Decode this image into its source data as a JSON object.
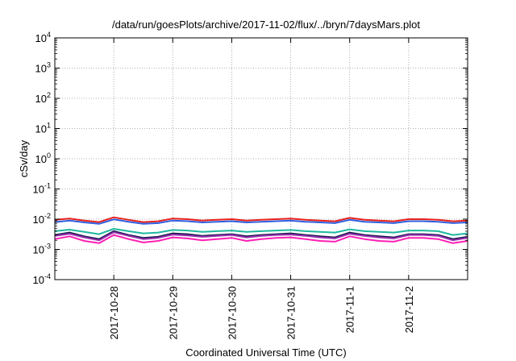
{
  "chart_data": {
    "type": "line",
    "title": "/data/run/goesPlots/archive/2017-11-02/flux/../bryn/7daysMars.plot",
    "xlabel": "Coordinated Universal Time (UTC)",
    "ylabel": "cSv/day",
    "yscale": "log",
    "ylim": [
      0.0001,
      10000
    ],
    "yticks": [
      {
        "value": 0.0001,
        "base": "10",
        "exp": "-4"
      },
      {
        "value": 0.001,
        "base": "10",
        "exp": "-3"
      },
      {
        "value": 0.01,
        "base": "10",
        "exp": "-2"
      },
      {
        "value": 0.1,
        "base": "10",
        "exp": "-1"
      },
      {
        "value": 1,
        "base": "10",
        "exp": "0"
      },
      {
        "value": 10,
        "base": "10",
        "exp": "1"
      },
      {
        "value": 100,
        "base": "10",
        "exp": "2"
      },
      {
        "value": 1000,
        "base": "10",
        "exp": "3"
      },
      {
        "value": 10000,
        "base": "10",
        "exp": "4"
      }
    ],
    "xlim": [
      "2017-10-27T00:00",
      "2017-11-03T00:00"
    ],
    "xticks": [
      {
        "value": "2017-10-28T00:00",
        "label": "2017-10-28"
      },
      {
        "value": "2017-10-29T00:00",
        "label": "2017-10-29"
      },
      {
        "value": "2017-10-30T00:00",
        "label": "2017-10-30"
      },
      {
        "value": "2017-10-31T00:00",
        "label": "2017-10-31"
      },
      {
        "value": "2017-11-01T00:00",
        "label": "2017-11-1"
      },
      {
        "value": "2017-11-02T00:00",
        "label": "2017-11-2"
      }
    ],
    "grid": true,
    "legend": "none",
    "x": [
      "2017-10-27T00:00",
      "2017-10-27T06:00",
      "2017-10-27T12:00",
      "2017-10-27T18:00",
      "2017-10-28T00:00",
      "2017-10-28T06:00",
      "2017-10-28T12:00",
      "2017-10-28T18:00",
      "2017-10-29T00:00",
      "2017-10-29T06:00",
      "2017-10-29T12:00",
      "2017-10-29T18:00",
      "2017-10-30T00:00",
      "2017-10-30T06:00",
      "2017-10-30T12:00",
      "2017-10-30T18:00",
      "2017-10-31T00:00",
      "2017-10-31T06:00",
      "2017-10-31T12:00",
      "2017-10-31T18:00",
      "2017-11-01T00:00",
      "2017-11-01T06:00",
      "2017-11-01T12:00",
      "2017-11-01T18:00",
      "2017-11-02T00:00",
      "2017-11-02T06:00",
      "2017-11-02T12:00",
      "2017-11-02T18:00",
      "2017-11-03T00:00"
    ],
    "series": [
      {
        "color": "#e8201c",
        "values": [
          0.0095,
          0.0105,
          0.009,
          0.008,
          0.0115,
          0.0095,
          0.008,
          0.0085,
          0.0105,
          0.01,
          0.009,
          0.0095,
          0.01,
          0.009,
          0.0095,
          0.01,
          0.0105,
          0.0095,
          0.009,
          0.0085,
          0.011,
          0.0095,
          0.009,
          0.0085,
          0.01,
          0.01,
          0.0095,
          0.0085,
          0.009
        ]
      },
      {
        "color": "#2e5fe0",
        "values": [
          0.008,
          0.009,
          0.0078,
          0.007,
          0.0098,
          0.0082,
          0.007,
          0.0074,
          0.009,
          0.0086,
          0.0078,
          0.0082,
          0.0086,
          0.0078,
          0.0082,
          0.0086,
          0.009,
          0.0082,
          0.0078,
          0.0074,
          0.0095,
          0.0082,
          0.0078,
          0.0074,
          0.0086,
          0.0086,
          0.0082,
          0.0074,
          0.0078
        ]
      },
      {
        "color": "#1fb8a0",
        "values": [
          0.004,
          0.0045,
          0.0038,
          0.0032,
          0.0048,
          0.004,
          0.0034,
          0.0036,
          0.0044,
          0.0042,
          0.0038,
          0.004,
          0.0042,
          0.0038,
          0.004,
          0.0042,
          0.0044,
          0.004,
          0.0038,
          0.0036,
          0.0046,
          0.004,
          0.0038,
          0.0036,
          0.0042,
          0.0042,
          0.004,
          0.003,
          0.0034
        ]
      },
      {
        "color": "#141a4a",
        "values": [
          0.003,
          0.0036,
          0.0027,
          0.0022,
          0.004,
          0.003,
          0.0024,
          0.0026,
          0.0034,
          0.0032,
          0.0028,
          0.003,
          0.0032,
          0.0027,
          0.003,
          0.0032,
          0.0034,
          0.003,
          0.0027,
          0.0025,
          0.0036,
          0.003,
          0.0027,
          0.0025,
          0.0032,
          0.0032,
          0.003,
          0.0022,
          0.0026
        ]
      },
      {
        "color": "#9a2fb0",
        "values": [
          0.0028,
          0.0033,
          0.0025,
          0.002,
          0.0037,
          0.0028,
          0.0022,
          0.0024,
          0.0031,
          0.0029,
          0.0026,
          0.0028,
          0.003,
          0.0025,
          0.0028,
          0.003,
          0.0031,
          0.0028,
          0.0025,
          0.0023,
          0.0033,
          0.0028,
          0.0025,
          0.0023,
          0.003,
          0.003,
          0.0028,
          0.002,
          0.0024
        ]
      },
      {
        "color": "#ff1fb4",
        "values": [
          0.0022,
          0.0027,
          0.0019,
          0.0016,
          0.003,
          0.0022,
          0.0017,
          0.0019,
          0.0025,
          0.0023,
          0.002,
          0.0022,
          0.0024,
          0.0019,
          0.0022,
          0.0024,
          0.0025,
          0.0022,
          0.0019,
          0.0018,
          0.0027,
          0.0022,
          0.0019,
          0.0018,
          0.0024,
          0.0024,
          0.0022,
          0.0016,
          0.0019
        ]
      }
    ]
  }
}
